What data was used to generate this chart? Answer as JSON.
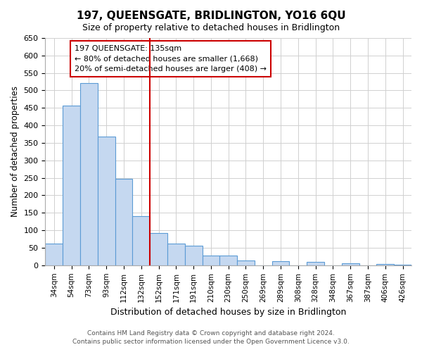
{
  "title": "197, QUEENSGATE, BRIDLINGTON, YO16 6QU",
  "subtitle": "Size of property relative to detached houses in Bridlington",
  "xlabel": "Distribution of detached houses by size in Bridlington",
  "ylabel": "Number of detached properties",
  "bar_labels": [
    "34sqm",
    "54sqm",
    "73sqm",
    "93sqm",
    "112sqm",
    "132sqm",
    "152sqm",
    "171sqm",
    "191sqm",
    "210sqm",
    "230sqm",
    "250sqm",
    "269sqm",
    "289sqm",
    "308sqm",
    "328sqm",
    "348sqm",
    "367sqm",
    "387sqm",
    "406sqm",
    "426sqm"
  ],
  "bar_values": [
    63,
    456,
    522,
    369,
    248,
    140,
    93,
    62,
    57,
    27,
    27,
    13,
    0,
    12,
    0,
    10,
    0,
    5,
    0,
    3,
    2
  ],
  "bar_color": "#c5d8f0",
  "bar_edge_color": "#5b9bd5",
  "vline_x": 5.5,
  "vline_color": "#cc0000",
  "ylim": [
    0,
    650
  ],
  "yticks": [
    0,
    50,
    100,
    150,
    200,
    250,
    300,
    350,
    400,
    450,
    500,
    550,
    600,
    650
  ],
  "annotation_title": "197 QUEENSGATE: 135sqm",
  "annotation_line1": "← 80% of detached houses are smaller (1,668)",
  "annotation_line2": "20% of semi-detached houses are larger (408) →",
  "footnote1": "Contains HM Land Registry data © Crown copyright and database right 2024.",
  "footnote2": "Contains public sector information licensed under the Open Government Licence v3.0.",
  "grid_color": "#d0d0d0",
  "background_color": "#ffffff"
}
